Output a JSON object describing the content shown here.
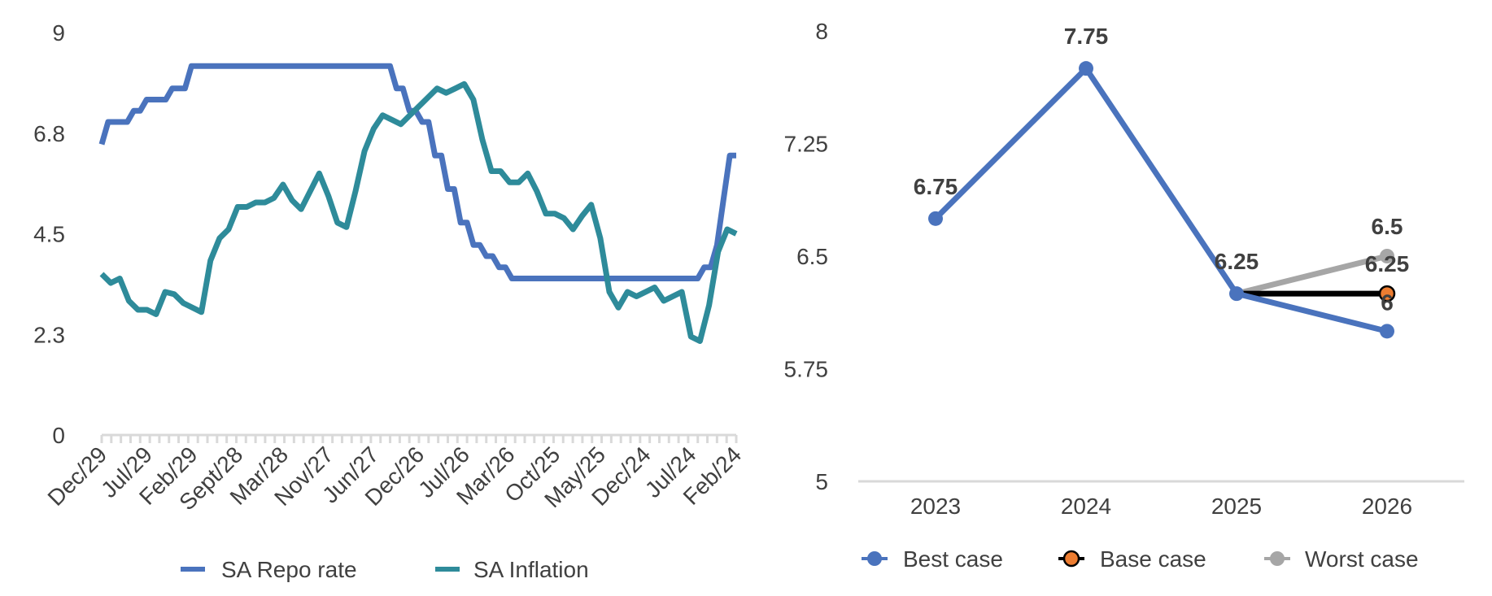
{
  "chart_data": [
    {
      "type": "line",
      "title": "",
      "xlabel": "",
      "ylabel": "",
      "ylim": [
        0,
        9
      ],
      "yticks": [
        "9",
        "6.8",
        "4.5",
        "2.3",
        "0"
      ],
      "ytick_values": [
        9,
        6.75,
        4.5,
        2.25,
        0
      ],
      "category_labels": [
        "Dec/29",
        "Jul/29",
        "Feb/29",
        "Sept/28",
        "Mar/28",
        "Nov/27",
        "Jun/27",
        "Dec/26",
        "Jul/26",
        "Mar/26",
        "Oct/25",
        "May/25",
        "Dec/24",
        "Jul/24",
        "Feb/24"
      ],
      "legend_position": "bottom",
      "series": [
        {
          "name": "SA Repo rate",
          "color": "#4A73BD",
          "values": [
            6.5,
            7.0,
            7.0,
            7.0,
            7.0,
            7.25,
            7.25,
            7.5,
            7.5,
            7.5,
            7.5,
            7.75,
            7.75,
            7.75,
            8.25,
            8.25,
            8.25,
            8.25,
            8.25,
            8.25,
            8.25,
            8.25,
            8.25,
            8.25,
            8.25,
            8.25,
            8.25,
            8.25,
            8.25,
            8.25,
            8.25,
            8.25,
            8.25,
            8.25,
            8.25,
            8.25,
            8.25,
            8.25,
            8.25,
            8.25,
            8.25,
            8.25,
            8.25,
            8.25,
            8.25,
            8.25,
            7.75,
            7.75,
            7.25,
            7.25,
            7.0,
            7.0,
            6.25,
            6.25,
            5.5,
            5.5,
            4.75,
            4.75,
            4.25,
            4.25,
            4.0,
            4.0,
            3.75,
            3.75,
            3.5,
            3.5,
            3.5,
            3.5,
            3.5,
            3.5,
            3.5,
            3.5,
            3.5,
            3.5,
            3.5,
            3.5,
            3.5,
            3.5,
            3.5,
            3.5,
            3.5,
            3.5,
            3.5,
            3.5,
            3.5,
            3.5,
            3.5,
            3.5,
            3.5,
            3.5,
            3.5,
            3.5,
            3.5,
            3.5,
            3.75,
            3.75,
            4.25,
            5.25,
            6.25,
            6.25
          ]
        },
        {
          "name": "SA Inflation",
          "color": "#2E8B9A",
          "values": [
            3.6,
            3.4,
            3.5,
            3.0,
            2.8,
            2.8,
            2.7,
            3.2,
            3.15,
            2.95,
            2.85,
            2.75,
            3.9,
            4.4,
            4.6,
            5.1,
            5.1,
            5.2,
            5.2,
            5.3,
            5.6,
            5.25,
            5.05,
            5.45,
            5.85,
            5.35,
            4.75,
            4.65,
            5.45,
            6.35,
            6.85,
            7.15,
            7.05,
            6.95,
            7.15,
            7.35,
            7.55,
            7.75,
            7.65,
            7.75,
            7.85,
            7.5,
            6.6,
            5.9,
            5.9,
            5.65,
            5.65,
            5.85,
            5.45,
            4.95,
            4.95,
            4.85,
            4.6,
            4.9,
            5.15,
            4.4,
            3.2,
            2.85,
            3.2,
            3.1,
            3.2,
            3.3,
            3.0,
            3.1,
            3.2,
            2.2,
            2.1,
            2.9,
            4.1,
            4.6,
            4.5
          ]
        }
      ]
    },
    {
      "type": "line",
      "title": "",
      "xlabel": "",
      "ylabel": "",
      "ylim": [
        5,
        8
      ],
      "yticks": [
        "8",
        "7.25",
        "6.5",
        "5.75",
        "5"
      ],
      "ytick_values": [
        8,
        7.25,
        6.5,
        5.75,
        5
      ],
      "categories": [
        "2023",
        "2024",
        "2025",
        "2026"
      ],
      "legend_position": "bottom",
      "series": [
        {
          "name": "Best case",
          "color": "#4A73BD",
          "values": [
            6.75,
            7.75,
            6.25,
            6
          ],
          "labels": [
            "6.75",
            "7.75",
            "6.25",
            "6"
          ]
        },
        {
          "name": "Base case",
          "color": "#000000",
          "marker_color": "#ED7D31",
          "values": [
            null,
            null,
            6.25,
            6.25
          ],
          "labels": [
            "",
            "",
            "",
            "6.25"
          ]
        },
        {
          "name": "Worst case",
          "color": "#A6A6A6",
          "values": [
            null,
            null,
            6.25,
            6.5
          ],
          "labels": [
            "",
            "",
            "",
            "6.5"
          ]
        }
      ]
    }
  ]
}
